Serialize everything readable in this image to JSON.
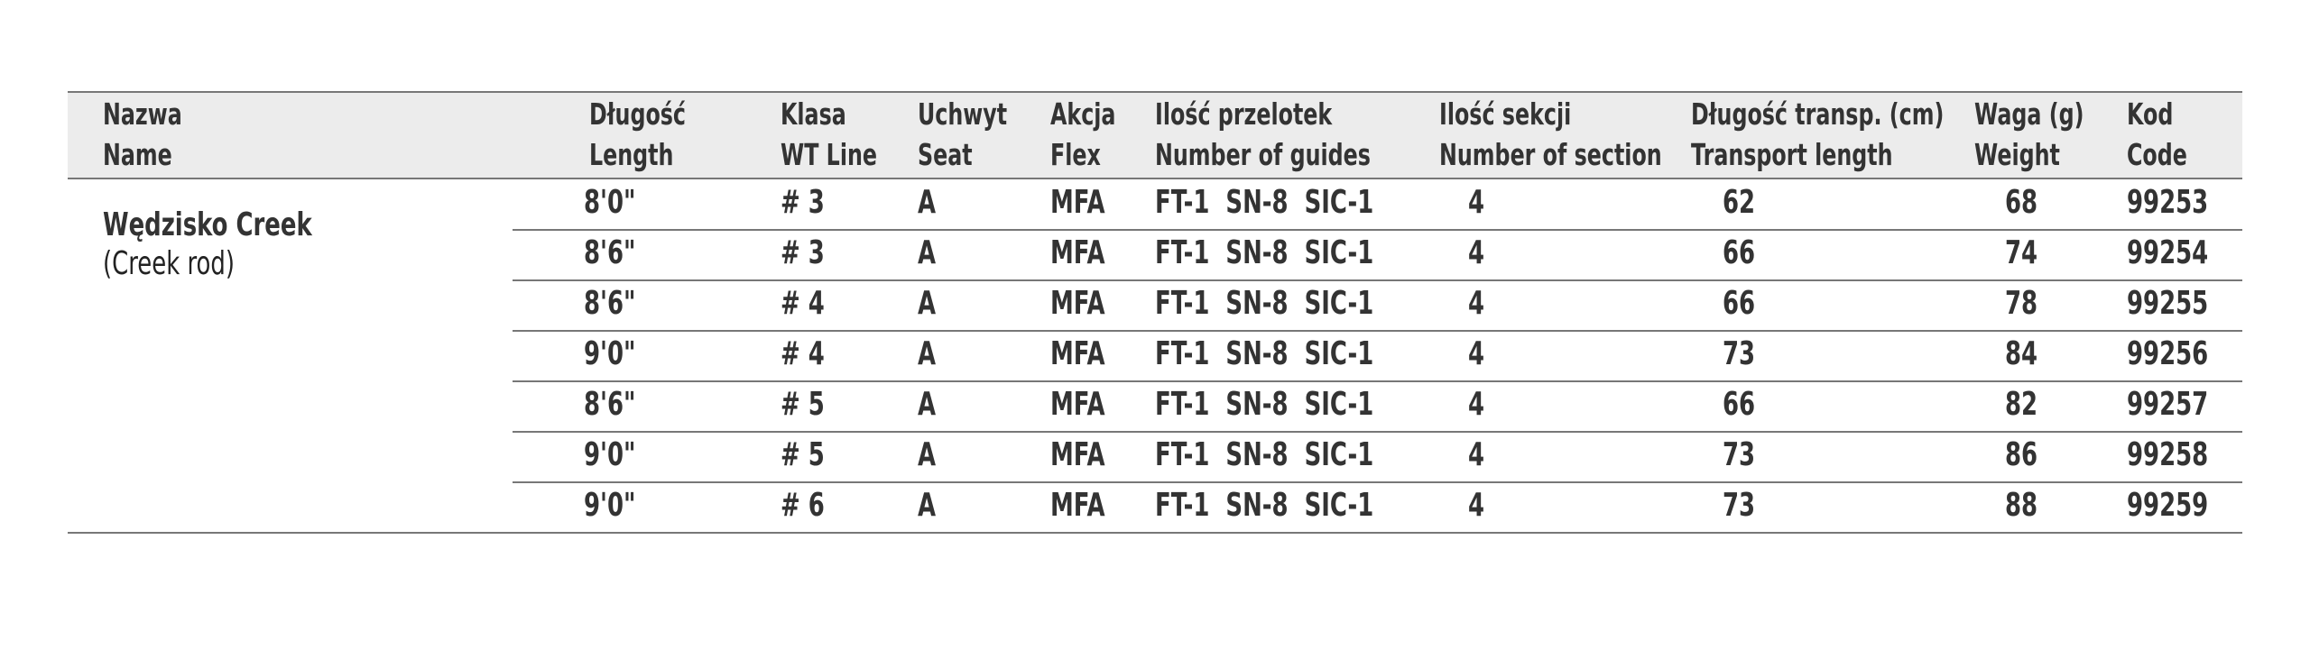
{
  "table": {
    "columns": [
      {
        "pl": "Nazwa",
        "en": "Name"
      },
      {
        "pl": "Długość",
        "en": "Length"
      },
      {
        "pl": "Klasa",
        "en": "WT Line"
      },
      {
        "pl": "Uchwyt",
        "en": "Seat"
      },
      {
        "pl": "Akcja",
        "en": "Flex"
      },
      {
        "pl": "Ilość przelotek",
        "en": "Number of guides"
      },
      {
        "pl": "Ilość sekcji",
        "en": "Number of section"
      },
      {
        "pl": "Długość transp. (cm)",
        "en": "Transport length"
      },
      {
        "pl": "Waga (g)",
        "en": "Weight"
      },
      {
        "pl": "Kod",
        "en": "Code"
      }
    ],
    "group": {
      "name": "Wędzisko Creek",
      "subname": "(Creek rod)"
    },
    "rows": [
      [
        "8'0\"",
        "# 3",
        "A",
        "MFA",
        "FT-1  SN-8  SIC-1",
        "4",
        "62",
        "68",
        "99253"
      ],
      [
        "8'6\"",
        "# 3",
        "A",
        "MFA",
        "FT-1  SN-8  SIC-1",
        "4",
        "66",
        "74",
        "99254"
      ],
      [
        "8'6\"",
        "# 4",
        "A",
        "MFA",
        "FT-1  SN-8  SIC-1",
        "4",
        "66",
        "78",
        "99255"
      ],
      [
        "9'0\"",
        "# 4",
        "A",
        "MFA",
        "FT-1  SN-8  SIC-1",
        "4",
        "73",
        "84",
        "99256"
      ],
      [
        "8'6\"",
        "# 5",
        "A",
        "MFA",
        "FT-1  SN-8  SIC-1",
        "4",
        "66",
        "82",
        "99257"
      ],
      [
        "9'0\"",
        "# 5",
        "A",
        "MFA",
        "FT-1  SN-8  SIC-1",
        "4",
        "73",
        "86",
        "99258"
      ],
      [
        "9'0\"",
        "# 6",
        "A",
        "MFA",
        "FT-1  SN-8  SIC-1",
        "4",
        "73",
        "88",
        "99259"
      ]
    ]
  }
}
